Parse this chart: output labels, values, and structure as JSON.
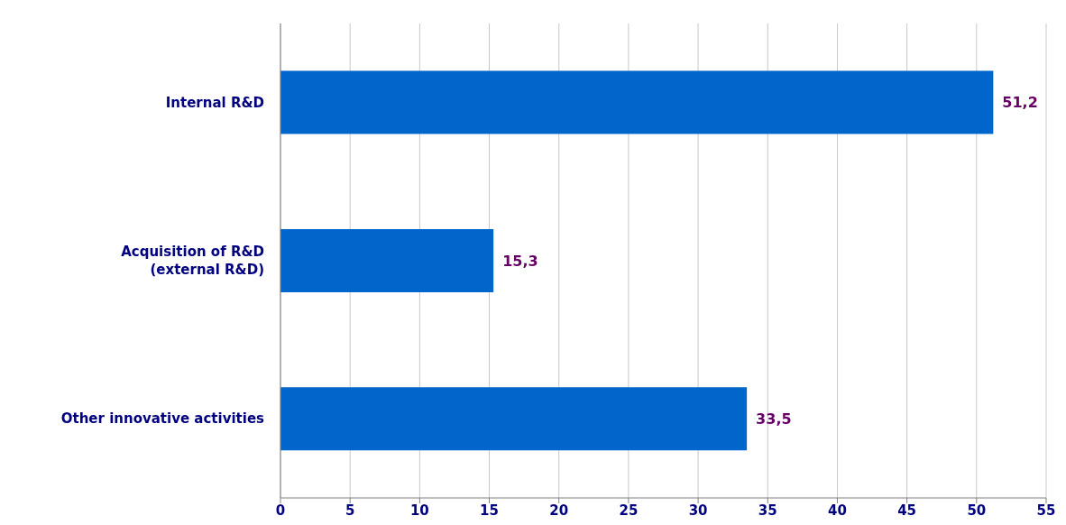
{
  "chart_data": {
    "type": "bar",
    "orientation": "horizontal",
    "categories": [
      "Internal R&D",
      "Acquisition of R&D\n(external R&D)",
      "Other innovative activities"
    ],
    "values": [
      51.2,
      15.3,
      33.5
    ],
    "value_labels": [
      "51,2",
      "15,3",
      "33,5"
    ],
    "color": "#0066cc",
    "xlim": [
      0,
      55
    ],
    "xticks": [
      0,
      5,
      10,
      15,
      20,
      25,
      30,
      35,
      40,
      45,
      50,
      55
    ],
    "grid": "x"
  }
}
